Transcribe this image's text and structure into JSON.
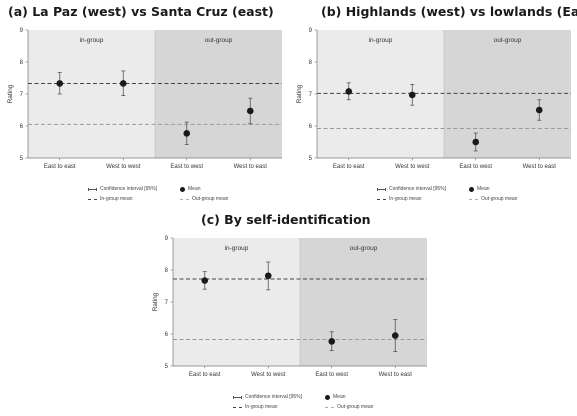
{
  "legend": {
    "ci_label": "Confidence interval [95%]",
    "mean_label": "Mean",
    "in_group_label": "In-group mean",
    "out_group_label": "Out-group mean"
  },
  "chart_data": [
    {
      "type": "scatter",
      "title": "(a) La Paz (west) vs Santa Cruz (east)",
      "ylabel": "Rating",
      "xlabel": "",
      "ylim": [
        5,
        9
      ],
      "yticks": [
        5,
        6,
        7,
        8,
        9
      ],
      "categories": [
        "East to east",
        "West to west",
        "East to west",
        "West to east"
      ],
      "regions": [
        "in-group",
        "out-group"
      ],
      "means": [
        7.33,
        7.33,
        5.77,
        6.47
      ],
      "ci_low": [
        7.0,
        6.95,
        5.42,
        6.07
      ],
      "ci_high": [
        7.67,
        7.72,
        6.12,
        6.87
      ],
      "in_group_mean": 7.33,
      "out_group_mean": 6.05,
      "grid": false,
      "legend_position": "bottom"
    },
    {
      "type": "scatter",
      "title": "(b) Highlands (west) vs lowlands (East)",
      "ylabel": "Rating",
      "xlabel": "",
      "ylim": [
        5,
        9
      ],
      "yticks": [
        5,
        6,
        7,
        8,
        9
      ],
      "categories": [
        "East to east",
        "West to west",
        "East to west",
        "West to east"
      ],
      "regions": [
        "in-group",
        "out-group"
      ],
      "means": [
        7.08,
        6.97,
        5.5,
        6.5
      ],
      "ci_low": [
        6.82,
        6.65,
        5.22,
        6.18
      ],
      "ci_high": [
        7.35,
        7.3,
        5.78,
        6.82
      ],
      "in_group_mean": 7.02,
      "out_group_mean": 5.92,
      "grid": false,
      "legend_position": "bottom"
    },
    {
      "type": "scatter",
      "title": "(c) By self-identification",
      "ylabel": "Rating",
      "xlabel": "",
      "ylim": [
        5,
        9
      ],
      "yticks": [
        5,
        6,
        7,
        8,
        9
      ],
      "categories": [
        "East to east",
        "West to west",
        "East to west",
        "West to east"
      ],
      "regions": [
        "in-group",
        "out-group"
      ],
      "means": [
        7.67,
        7.82,
        5.77,
        5.95
      ],
      "ci_low": [
        7.4,
        7.38,
        5.48,
        5.45
      ],
      "ci_high": [
        7.95,
        8.25,
        6.07,
        6.45
      ],
      "in_group_mean": 7.72,
      "out_group_mean": 5.83,
      "grid": false,
      "legend_position": "bottom"
    }
  ]
}
